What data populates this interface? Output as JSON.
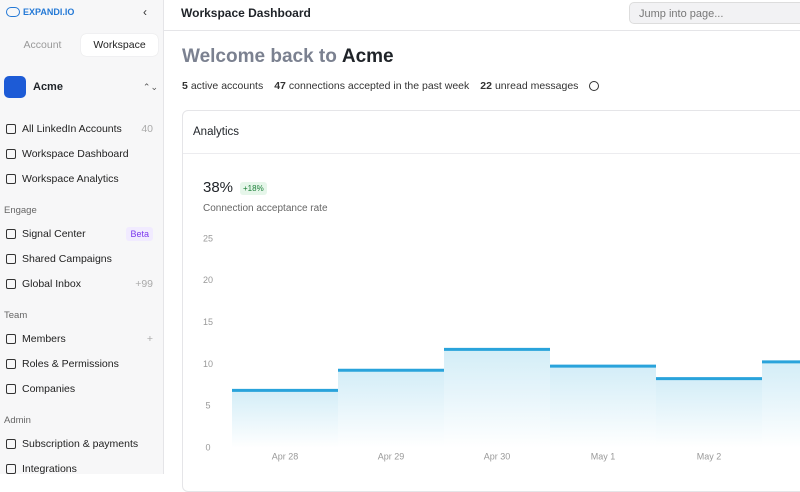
{
  "sidebar": {
    "logo": "EXPANDI.IO",
    "tabs": [
      "Account",
      "Workspace"
    ],
    "workspace": "Acme",
    "items": [
      {
        "label": "All LinkedIn Accounts",
        "badge": "40"
      },
      {
        "label": "Workspace Dashboard"
      },
      {
        "label": "Workspace Analytics"
      }
    ],
    "sections": [
      {
        "title": "Engage",
        "items": [
          {
            "label": "Signal Center",
            "badge": "Beta"
          },
          {
            "label": "Shared Campaigns"
          },
          {
            "label": "Global Inbox",
            "badge": "+99"
          }
        ]
      },
      {
        "title": "Team",
        "items": [
          {
            "label": "Members",
            "badge": "+"
          },
          {
            "label": "Roles & Permissions"
          },
          {
            "label": "Companies"
          }
        ]
      },
      {
        "title": "Admin",
        "items": [
          {
            "label": "Subscription & payments"
          },
          {
            "label": "Integrations"
          }
        ]
      }
    ]
  },
  "header": {
    "title": "Workspace Dashboard",
    "search_placeholder": "Jump into page..."
  },
  "welcome": {
    "prefix": "Welcome back to",
    "name": "Acme"
  },
  "stats": [
    {
      "value": "5",
      "label": "active accounts"
    },
    {
      "value": "47",
      "label": "connections accepted in the past week"
    },
    {
      "value": "22",
      "label": "unread messages"
    }
  ],
  "card": {
    "title": "Analytics",
    "metric": "38%",
    "change": "+18%",
    "caption": "Connection acceptance rate"
  },
  "chart_data": {
    "type": "step-area",
    "categories": [
      "Apr 28",
      "Apr 29",
      "Apr 30",
      "May 1",
      "May 2",
      null
    ],
    "values": [
      6.9,
      9.3,
      11.8,
      9.8,
      8.3,
      10.3
    ],
    "color": "#29a3db",
    "ylim": [
      0,
      25
    ],
    "yticks": [
      0,
      5,
      10,
      15,
      20,
      25
    ]
  }
}
